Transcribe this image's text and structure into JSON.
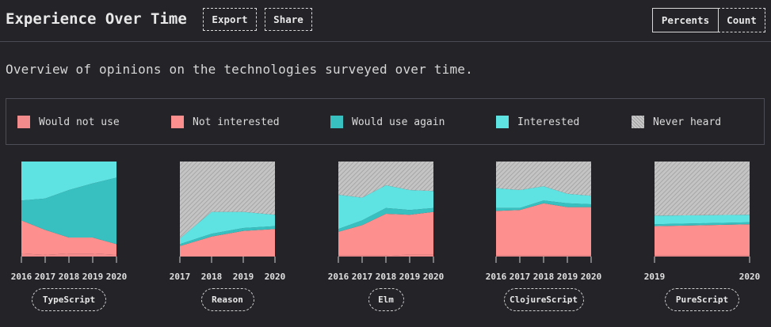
{
  "header": {
    "title": "Experience Over Time",
    "export_label": "Export",
    "share_label": "Share",
    "mode_percents": "Percents",
    "mode_count": "Count",
    "active_mode": "Percents"
  },
  "subtitle": "Overview of opinions on the technologies surveyed over time.",
  "legend": [
    {
      "label": "Would not use",
      "color": "#f28b8b",
      "key": "would_not_use"
    },
    {
      "label": "Not interested",
      "color": "#fe8f8f",
      "key": "not_interested"
    },
    {
      "label": "Would use again",
      "color": "#38c0c0",
      "key": "would_use_again"
    },
    {
      "label": "Interested",
      "color": "#5ee2e2",
      "key": "interested"
    },
    {
      "label": "Never heard",
      "color": "#cccccc",
      "key": "never_heard",
      "pattern": "hatched"
    }
  ],
  "chart_data": [
    {
      "type": "area",
      "stacked": true,
      "unit": "percent",
      "name": "TypeScript",
      "x": [
        "2016",
        "2017",
        "2018",
        "2019",
        "2020"
      ],
      "series": [
        {
          "name": "Would not use",
          "values": [
            3,
            2,
            3,
            3,
            2
          ]
        },
        {
          "name": "Not interested",
          "values": [
            35,
            26,
            17,
            17,
            11
          ]
        },
        {
          "name": "Would use again",
          "values": [
            21,
            33,
            50,
            57,
            70
          ]
        },
        {
          "name": "Interested",
          "values": [
            41,
            39,
            30,
            23,
            17
          ]
        },
        {
          "name": "Never heard",
          "values": [
            0,
            0,
            0,
            0,
            0
          ]
        }
      ],
      "ylim": [
        0,
        100
      ]
    },
    {
      "type": "area",
      "stacked": true,
      "unit": "percent",
      "name": "Reason",
      "x": [
        "2017",
        "2018",
        "2019",
        "2020"
      ],
      "series": [
        {
          "name": "Would not use",
          "values": [
            0,
            0,
            0,
            0
          ]
        },
        {
          "name": "Not interested",
          "values": [
            11,
            21,
            27,
            29
          ]
        },
        {
          "name": "Would use again",
          "values": [
            2,
            3,
            3,
            3
          ]
        },
        {
          "name": "Interested",
          "values": [
            6,
            23,
            17,
            12
          ]
        },
        {
          "name": "Never heard",
          "values": [
            81,
            53,
            53,
            56
          ]
        }
      ],
      "ylim": [
        0,
        100
      ]
    },
    {
      "type": "area",
      "stacked": true,
      "unit": "percent",
      "name": "Elm",
      "x": [
        "2016",
        "2017",
        "2018",
        "2019",
        "2020"
      ],
      "series": [
        {
          "name": "Would not use",
          "values": [
            1,
            1,
            1,
            2,
            2
          ]
        },
        {
          "name": "Not interested",
          "values": [
            25,
            32,
            44,
            42,
            45
          ]
        },
        {
          "name": "Would use again",
          "values": [
            3,
            5,
            6,
            5,
            4
          ]
        },
        {
          "name": "Interested",
          "values": [
            36,
            24,
            24,
            21,
            18
          ]
        },
        {
          "name": "Never heard",
          "values": [
            35,
            38,
            25,
            30,
            31
          ]
        }
      ],
      "ylim": [
        0,
        100
      ]
    },
    {
      "type": "area",
      "stacked": true,
      "unit": "percent",
      "name": "ClojureScript",
      "x": [
        "2016",
        "2017",
        "2018",
        "2019",
        "2020"
      ],
      "series": [
        {
          "name": "Would not use",
          "values": [
            1,
            1,
            1,
            1,
            1
          ]
        },
        {
          "name": "Not interested",
          "values": [
            47,
            48,
            55,
            51,
            51
          ]
        },
        {
          "name": "Would use again",
          "values": [
            3,
            2,
            3,
            4,
            3
          ]
        },
        {
          "name": "Interested",
          "values": [
            21,
            19,
            15,
            10,
            9
          ]
        },
        {
          "name": "Never heard",
          "values": [
            28,
            30,
            26,
            34,
            36
          ]
        }
      ],
      "ylim": [
        0,
        100
      ]
    },
    {
      "type": "area",
      "stacked": true,
      "unit": "percent",
      "name": "PureScript",
      "x": [
        "2019",
        "2020"
      ],
      "series": [
        {
          "name": "Would not use",
          "values": [
            1,
            1
          ]
        },
        {
          "name": "Not interested",
          "values": [
            31,
            33
          ]
        },
        {
          "name": "Would use again",
          "values": [
            2,
            2
          ]
        },
        {
          "name": "Interested",
          "values": [
            9,
            8
          ]
        },
        {
          "name": "Never heard",
          "values": [
            57,
            56
          ]
        }
      ],
      "ylim": [
        0,
        100
      ]
    }
  ]
}
